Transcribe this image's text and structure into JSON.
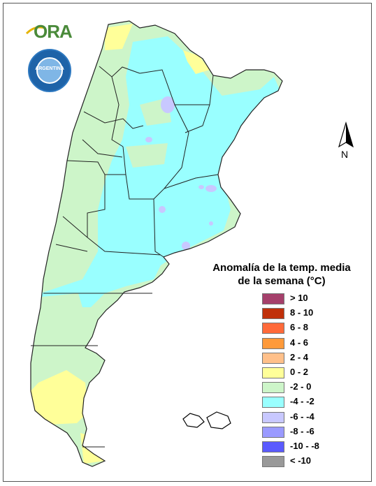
{
  "map": {
    "title_line1": "Anomalía de la temp. media",
    "title_line2": "de la semana (°C)",
    "north_label": "N",
    "logo_text": "ORA",
    "seal_text": "ARGENTINA",
    "colors": {
      "green": "#cdf5c9",
      "cyan": "#99ffff",
      "yellow": "#ffff99",
      "lavender": "#c8c8ff",
      "border": "#222222"
    },
    "legend": [
      {
        "label": "> 10",
        "color": "#a5406b"
      },
      {
        "label": "8 - 10",
        "color": "#c0300a"
      },
      {
        "label": "6 - 8",
        "color": "#ff6a3a"
      },
      {
        "label": "4 - 6",
        "color": "#ff9a3a"
      },
      {
        "label": "2 - 4",
        "color": "#ffc08a"
      },
      {
        "label": "0 - 2",
        "color": "#ffff99"
      },
      {
        "label": "-2 - 0",
        "color": "#cdf5c9"
      },
      {
        "label": "-4 - -2",
        "color": "#99ffff"
      },
      {
        "label": "-6 - -4",
        "color": "#c8c8ff"
      },
      {
        "label": "-8 - -6",
        "color": "#9a9aff"
      },
      {
        "label": "-10 - -8",
        "color": "#5a5aff"
      },
      {
        "label": "< -10",
        "color": "#999999"
      }
    ]
  }
}
